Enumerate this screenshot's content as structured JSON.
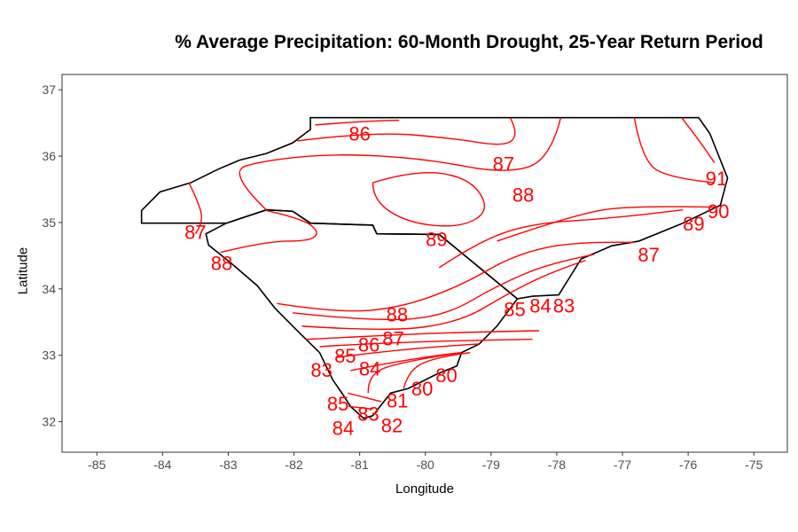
{
  "chart_data": {
    "type": "contour-map",
    "title": "% Average Precipitation: 60-Month Drought, 25-Year Return Period",
    "xlabel": "Longitude",
    "ylabel": "Latitude",
    "xlim": [
      -85.53,
      -74.49
    ],
    "ylim": [
      31.54,
      37.23
    ],
    "xticks": [
      -85,
      -84,
      -83,
      -82,
      -81,
      -80,
      -79,
      -78,
      -77,
      -76,
      -75
    ],
    "yticks": [
      32,
      33,
      34,
      35,
      36,
      37
    ],
    "grid": false,
    "colors": {
      "contour": "#ff0000",
      "boundary": "#000000",
      "axis_text": "#4d4d4d"
    },
    "boundaries": [
      {
        "name": "North Carolina",
        "coords": [
          [
            -81.75,
            36.58
          ],
          [
            -75.84,
            36.58
          ],
          [
            -75.67,
            36.34
          ],
          [
            -75.4,
            35.67
          ],
          [
            -75.51,
            35.26
          ],
          [
            -76.08,
            34.99
          ],
          [
            -76.75,
            34.72
          ],
          [
            -77.16,
            34.65
          ],
          [
            -77.63,
            34.45
          ],
          [
            -77.97,
            33.91
          ],
          [
            -78.37,
            33.89
          ],
          [
            -78.6,
            33.85
          ],
          [
            -79.79,
            34.82
          ],
          [
            -80.74,
            34.83
          ],
          [
            -80.8,
            34.96
          ],
          [
            -81.75,
            34.99
          ],
          [
            -82.02,
            35.17
          ],
          [
            -82.42,
            35.19
          ],
          [
            -83.03,
            34.99
          ],
          [
            -84.32,
            34.99
          ],
          [
            -84.32,
            35.18
          ],
          [
            -84.04,
            35.46
          ],
          [
            -83.57,
            35.6
          ],
          [
            -83.16,
            35.8
          ],
          [
            -82.83,
            35.94
          ],
          [
            -82.42,
            36.04
          ],
          [
            -82.02,
            36.2
          ],
          [
            -81.75,
            36.4
          ],
          [
            -81.75,
            36.58
          ]
        ]
      },
      {
        "name": "South Carolina",
        "coords": [
          [
            -78.6,
            33.85
          ],
          [
            -78.91,
            33.44
          ],
          [
            -79.18,
            33.17
          ],
          [
            -79.45,
            33.04
          ],
          [
            -79.52,
            32.84
          ],
          [
            -79.86,
            32.7
          ],
          [
            -80.26,
            32.5
          ],
          [
            -80.53,
            32.43
          ],
          [
            -80.8,
            32.09
          ],
          [
            -80.94,
            32.05
          ],
          [
            -81.14,
            32.23
          ],
          [
            -81.27,
            32.43
          ],
          [
            -81.41,
            32.63
          ],
          [
            -81.61,
            33.04
          ],
          [
            -81.95,
            33.37
          ],
          [
            -82.29,
            33.71
          ],
          [
            -82.56,
            34.05
          ],
          [
            -82.96,
            34.39
          ],
          [
            -83.3,
            34.66
          ],
          [
            -83.34,
            34.83
          ],
          [
            -83.03,
            34.99
          ],
          [
            -82.42,
            35.19
          ],
          [
            -82.02,
            35.17
          ],
          [
            -81.75,
            34.99
          ],
          [
            -80.8,
            34.96
          ],
          [
            -80.74,
            34.83
          ],
          [
            -79.79,
            34.82
          ],
          [
            -78.6,
            33.85
          ]
        ]
      }
    ],
    "contours": [
      {
        "level": 86,
        "coords": [
          [
            -81.95,
            36.23
          ],
          [
            -80.8,
            36.37
          ],
          [
            -79.59,
            36.27
          ],
          [
            -78.78,
            36.14
          ],
          [
            -78.58,
            36.34
          ],
          [
            -78.71,
            36.58
          ]
        ]
      },
      {
        "level": 86,
        "coords": [
          [
            -81.68,
            36.47
          ],
          [
            -80.8,
            36.54
          ],
          [
            -80.4,
            36.54
          ]
        ]
      },
      {
        "level": 87,
        "coords": [
          [
            -77.94,
            36.58
          ],
          [
            -78.1,
            35.94
          ],
          [
            -78.78,
            35.73
          ],
          [
            -79.99,
            35.96
          ],
          [
            -81.34,
            36.04
          ],
          [
            -82.42,
            35.94
          ],
          [
            -83.03,
            35.77
          ],
          [
            -82.42,
            35.19
          ]
        ]
      },
      {
        "level": 87,
        "coords": [
          [
            -83.6,
            35.6
          ],
          [
            -83.43,
            35.26
          ],
          [
            -83.39,
            34.99
          ],
          [
            -83.5,
            34.83
          ]
        ]
      },
      {
        "level": 88,
        "coords": [
          [
            -80.8,
            35.6
          ],
          [
            -80.13,
            35.8
          ],
          [
            -79.32,
            35.67
          ],
          [
            -79.01,
            35.19
          ],
          [
            -79.45,
            34.92
          ],
          [
            -80.26,
            34.99
          ],
          [
            -80.8,
            35.33
          ],
          [
            -80.8,
            35.6
          ]
        ]
      },
      {
        "level": 88,
        "coords": [
          [
            -83.12,
            34.55
          ],
          [
            -82.42,
            34.72
          ],
          [
            -81.75,
            34.72
          ],
          [
            -81.61,
            34.86
          ],
          [
            -81.88,
            35.06
          ],
          [
            -82.42,
            35.18
          ]
        ]
      },
      {
        "level": 89,
        "coords": [
          [
            -79.79,
            34.32
          ],
          [
            -79.18,
            34.72
          ],
          [
            -78.37,
            34.99
          ],
          [
            -77.16,
            35.06
          ],
          [
            -76.08,
            35.19
          ]
        ]
      },
      {
        "level": 90,
        "coords": [
          [
            -78.91,
            34.72
          ],
          [
            -77.7,
            35.13
          ],
          [
            -76.82,
            35.26
          ],
          [
            -75.54,
            35.23
          ]
        ]
      },
      {
        "level": 91,
        "coords": [
          [
            -76.82,
            36.58
          ],
          [
            -76.7,
            35.94
          ],
          [
            -76.3,
            35.67
          ],
          [
            -75.6,
            35.6
          ]
        ]
      },
      {
        "level": 91,
        "coords": [
          [
            -76.1,
            36.58
          ],
          [
            -75.8,
            36.2
          ],
          [
            -75.6,
            35.9
          ]
        ]
      },
      {
        "level": 88,
        "coords": [
          [
            -82.26,
            33.78
          ],
          [
            -81.34,
            33.64
          ],
          [
            -80.4,
            33.71
          ],
          [
            -79.45,
            34.05
          ],
          [
            -78.64,
            34.52
          ],
          [
            -77.7,
            34.72
          ],
          [
            -76.82,
            34.7
          ]
        ]
      },
      {
        "level": 87,
        "coords": [
          [
            -82.02,
            33.64
          ],
          [
            -80.8,
            33.51
          ],
          [
            -79.72,
            33.58
          ],
          [
            -78.91,
            34.05
          ],
          [
            -78.1,
            34.39
          ],
          [
            -77.43,
            34.52
          ]
        ]
      },
      {
        "level": 86,
        "coords": [
          [
            -81.88,
            33.44
          ],
          [
            -80.53,
            33.35
          ],
          [
            -79.45,
            33.51
          ],
          [
            -78.78,
            33.91
          ],
          [
            -78.1,
            34.25
          ],
          [
            -77.56,
            34.43
          ]
        ]
      },
      {
        "level": 85,
        "coords": [
          [
            -81.82,
            33.24
          ],
          [
            -80.4,
            33.31
          ],
          [
            -79.32,
            33.35
          ],
          [
            -78.27,
            33.37
          ]
        ]
      },
      {
        "level": 84,
        "coords": [
          [
            -81.61,
            33.13
          ],
          [
            -80.4,
            33.21
          ],
          [
            -78.37,
            33.24
          ]
        ]
      },
      {
        "level": 83,
        "coords": [
          [
            -81.34,
            32.97
          ],
          [
            -80.26,
            33.11
          ],
          [
            -79.18,
            33.17
          ]
        ]
      },
      {
        "level": 82,
        "coords": [
          [
            -81.14,
            32.77
          ],
          [
            -80.13,
            32.97
          ],
          [
            -79.45,
            33.04
          ]
        ]
      },
      {
        "level": 81,
        "coords": [
          [
            -80.87,
            32.43
          ],
          [
            -80.88,
            32.7
          ],
          [
            -80.4,
            32.9
          ],
          [
            -79.45,
            33.04
          ]
        ]
      },
      {
        "level": 80,
        "coords": [
          [
            -80.33,
            32.5
          ],
          [
            -80.26,
            32.77
          ],
          [
            -79.86,
            32.97
          ],
          [
            -79.32,
            33.04
          ]
        ]
      },
      {
        "level": 82,
        "coords": [
          [
            -81.18,
            32.43
          ],
          [
            -80.67,
            32.3
          ]
        ]
      },
      {
        "level": 83,
        "coords": [
          [
            -81.17,
            32.23
          ],
          [
            -80.8,
            32.19
          ]
        ]
      }
    ],
    "labels": [
      {
        "text": "86",
        "lon": -81.0,
        "lat": 36.34
      },
      {
        "text": "87",
        "lon": -78.81,
        "lat": 35.89
      },
      {
        "text": "88",
        "lon": -78.51,
        "lat": 35.42
      },
      {
        "text": "91",
        "lon": -75.57,
        "lat": 35.67
      },
      {
        "text": "90",
        "lon": -75.54,
        "lat": 35.17
      },
      {
        "text": "89",
        "lon": -75.78,
        "lat": 35.05
      },
      {
        "text": "87",
        "lon": -83.5,
        "lat": 34.86
      },
      {
        "text": "89",
        "lon": -79.83,
        "lat": 34.75
      },
      {
        "text": "87",
        "lon": -76.6,
        "lat": 34.52
      },
      {
        "text": "88",
        "lon": -83.1,
        "lat": 34.39
      },
      {
        "text": "85",
        "lon": -78.64,
        "lat": 33.7
      },
      {
        "text": "84",
        "lon": -78.33,
        "lat": 33.75
      },
      {
        "text": "83",
        "lon": -78.04,
        "lat": 33.75
      },
      {
        "text": "88",
        "lon": -80.43,
        "lat": 33.62
      },
      {
        "text": "87",
        "lon": -80.53,
        "lat": 33.4
      },
      {
        "text": "86",
        "lon": -80.67,
        "lat": 33.27
      },
      {
        "text": "85",
        "lon": -80.91,
        "lat": 33.17
      },
      {
        "text": "84",
        "lon": -81.21,
        "lat": 33.0
      },
      {
        "text": "83",
        "lon": -81.5,
        "lat": 32.81
      },
      {
        "text": "80",
        "lon": -79.68,
        "lat": 32.7
      },
      {
        "text": "80",
        "lon": -79.86,
        "lat": 32.61
      },
      {
        "text": "81",
        "lon": -80.29,
        "lat": 32.39
      },
      {
        "text": "82",
        "lon": -80.51,
        "lat": 32.23
      },
      {
        "text": "83",
        "lon": -80.8,
        "lat": 32.16
      },
      {
        "text": "84",
        "lon": -80.78,
        "lat": 32.03
      },
      {
        "text": "85",
        "lon": -80.94,
        "lat": 31.89
      }
    ]
  }
}
